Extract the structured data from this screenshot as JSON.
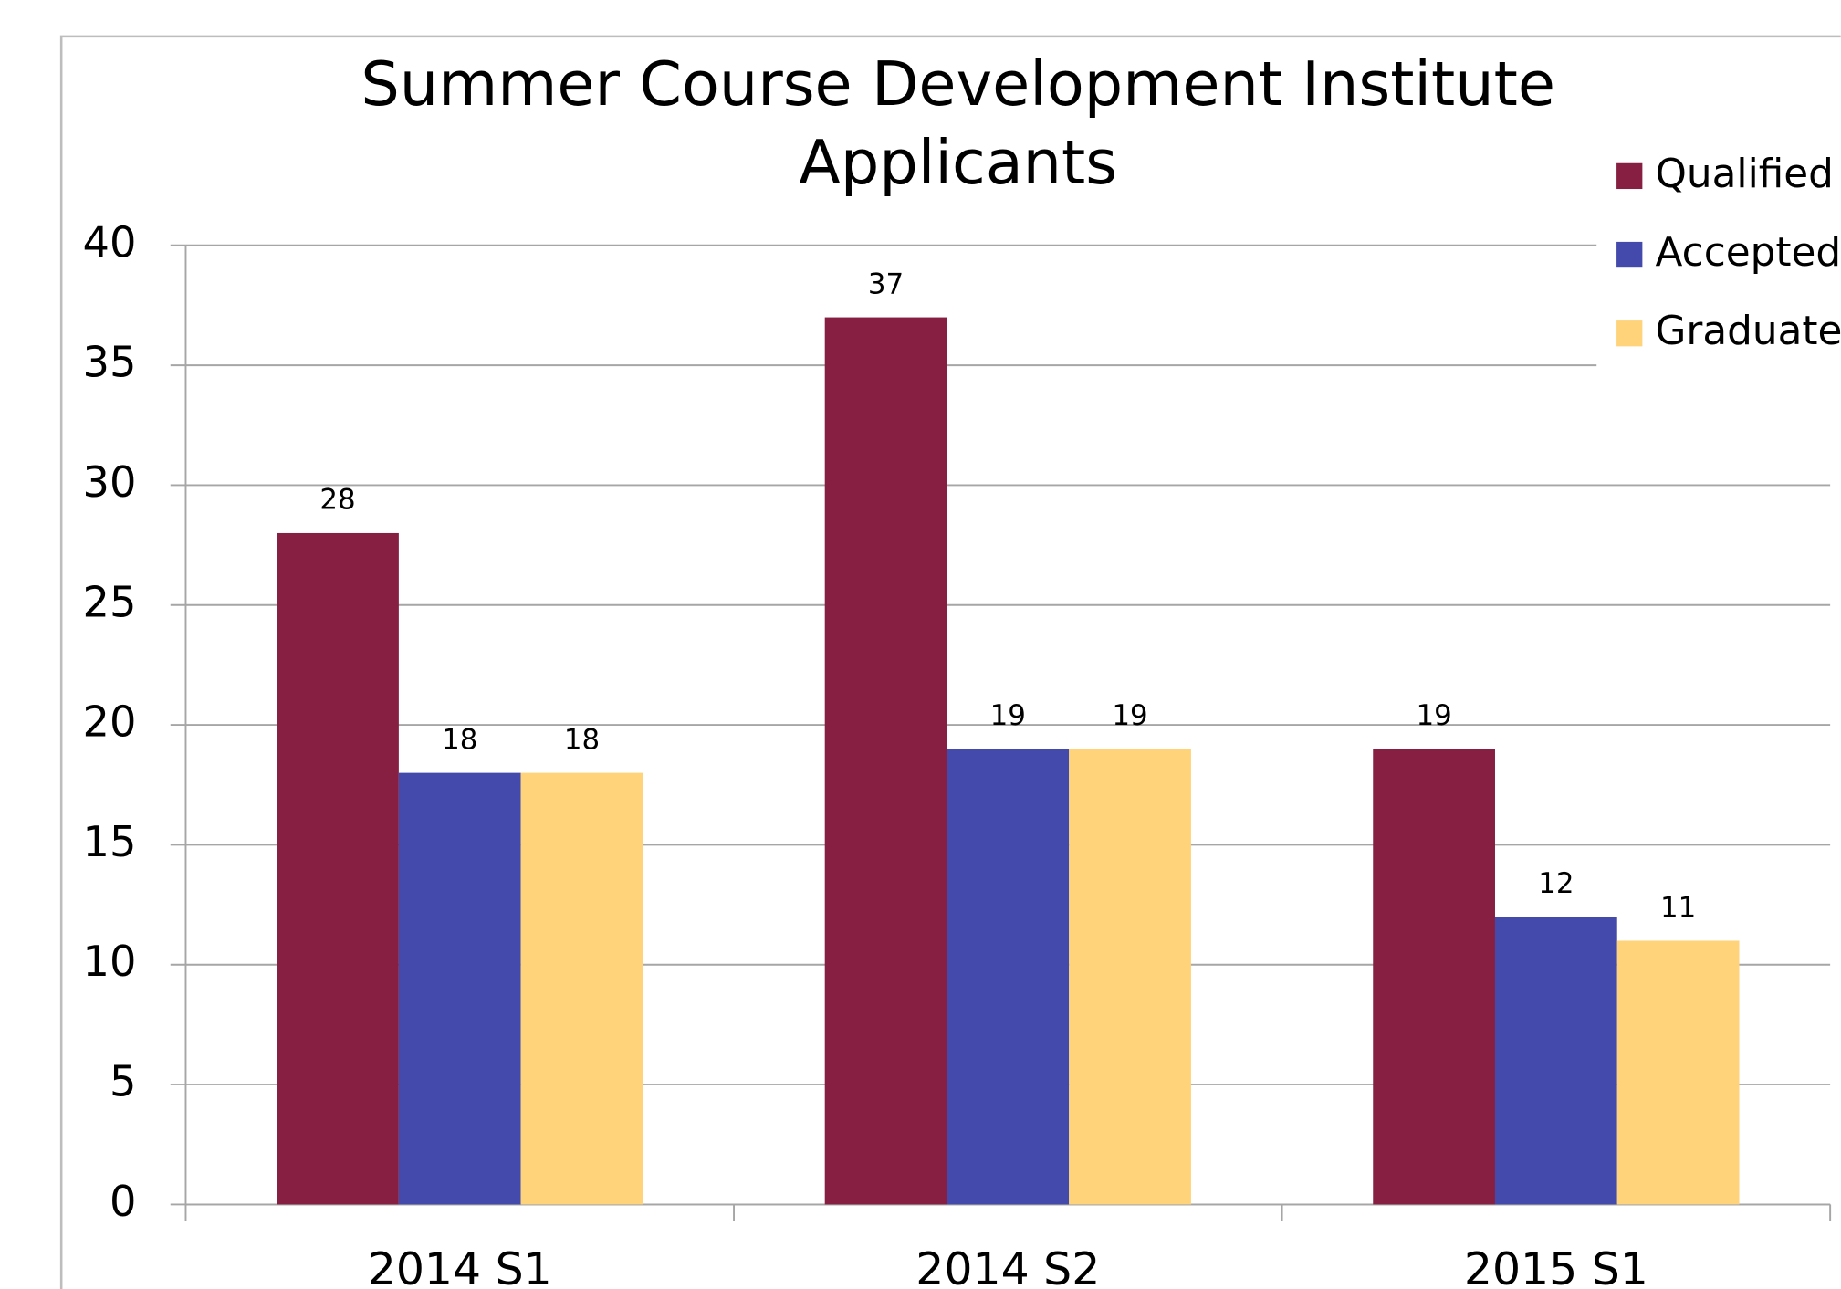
{
  "chart_data": {
    "type": "bar",
    "title": [
      "Summer Course Development Institute",
      "Applicants"
    ],
    "categories": [
      "2014 S1",
      "2014 S2",
      "2015 S1"
    ],
    "series": [
      {
        "name": "Qualified",
        "color": "#861f41",
        "values": [
          28,
          37,
          19
        ]
      },
      {
        "name": "Accepted",
        "color": "#434aab",
        "values": [
          18,
          19,
          12
        ]
      },
      {
        "name": "Graduate",
        "color": "#ffd37a",
        "values": [
          18,
          19,
          11
        ]
      }
    ],
    "ylim": [
      0,
      40
    ],
    "yticks": [
      0,
      5,
      10,
      15,
      20,
      25,
      30,
      35,
      40
    ],
    "grid": true,
    "legend": "right"
  }
}
